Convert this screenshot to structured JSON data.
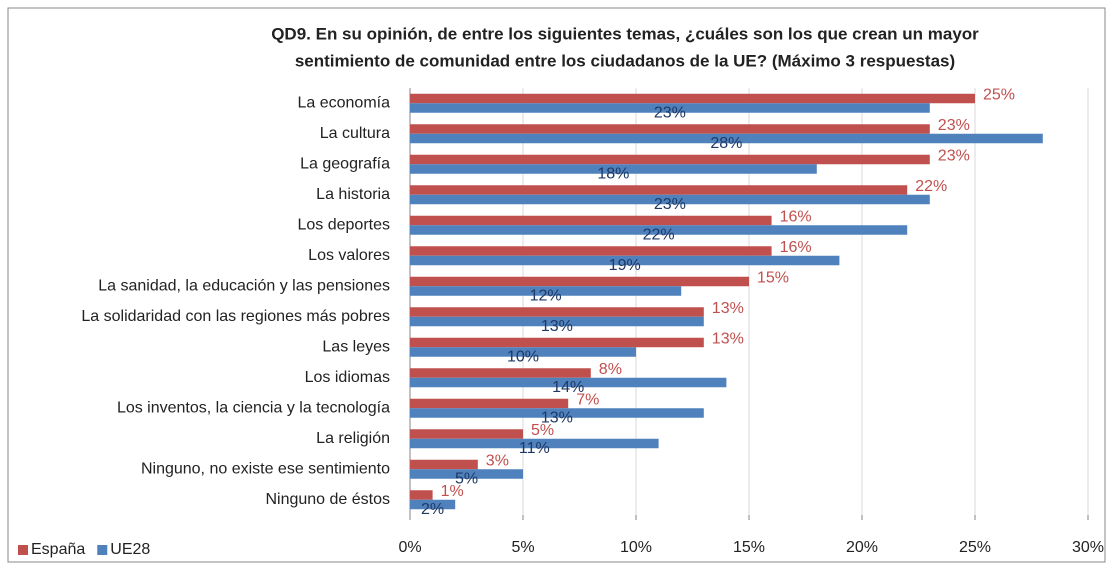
{
  "chart_data": {
    "type": "bar",
    "orientation": "horizontal",
    "title": [
      "QD9. En su opinión, de entre los siguientes temas, ¿cuáles son los que crean un mayor",
      "sentimiento de comunidad entre los ciudadanos de la UE? (Máximo 3 respuestas)"
    ],
    "categories": [
      "La economía",
      "La cultura",
      "La geografía",
      "La historia",
      "Los deportes",
      "Los valores",
      "La sanidad, la educación y las pensiones",
      "La solidaridad con las regiones más pobres",
      "Las leyes",
      "Los idiomas",
      "Los inventos, la ciencia y la tecnología",
      "La religión",
      "Ninguno, no existe ese sentimiento",
      "Ninguno de éstos"
    ],
    "series": [
      {
        "name": "España",
        "color": "#c0504d",
        "values": [
          25,
          23,
          23,
          22,
          16,
          16,
          15,
          13,
          13,
          8,
          7,
          5,
          3,
          1
        ],
        "value_labels": [
          "25%",
          "23%",
          "23%",
          "22%",
          "16%",
          "16%",
          "15%",
          "13%",
          "13%",
          "8%",
          "7%",
          "5%",
          "3%",
          "1%"
        ]
      },
      {
        "name": "UE28",
        "color": "#4f81bd",
        "values": [
          23,
          28,
          18,
          23,
          22,
          19,
          12,
          13,
          10,
          14,
          13,
          11,
          5,
          2
        ],
        "value_labels": [
          "23%",
          "28%",
          "18%",
          "23%",
          "22%",
          "19%",
          "12%",
          "13%",
          "10%",
          "14%",
          "13%",
          "11%",
          "5%",
          "2%"
        ]
      }
    ],
    "xlim": [
      0,
      30
    ],
    "xticks": [
      {
        "value": 0,
        "label": "0%"
      },
      {
        "value": 5,
        "label": "5%"
      },
      {
        "value": 10,
        "label": "10%"
      },
      {
        "value": 15,
        "label": "15%"
      },
      {
        "value": 20,
        "label": "20%"
      },
      {
        "value": 25,
        "label": "25%"
      },
      {
        "value": 30,
        "label": "30%"
      }
    ],
    "grid": true,
    "legend": "lower left"
  }
}
